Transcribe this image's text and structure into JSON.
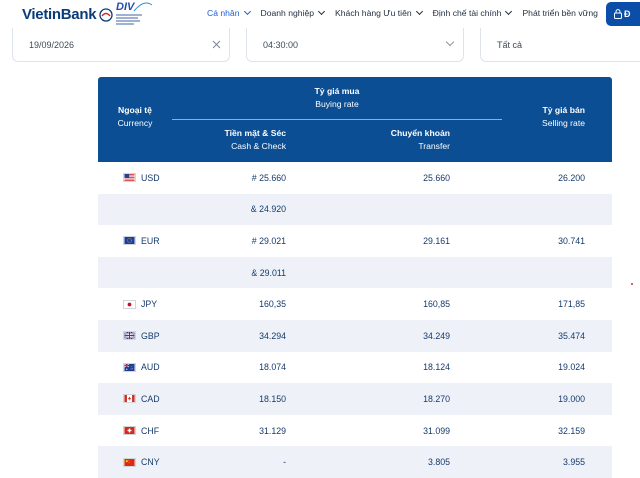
{
  "brand": {
    "name": "VietinBank",
    "badge": "DIV"
  },
  "nav": {
    "items": [
      {
        "label": "Cá nhân",
        "active": true
      },
      {
        "label": "Doanh nghiệp",
        "active": false
      },
      {
        "label": "Khách hàng Ưu tiên",
        "active": false
      },
      {
        "label": "Định chế tài chính",
        "active": false
      },
      {
        "label": "Phát triển bền vững",
        "active": false
      }
    ],
    "login_label": "Đ"
  },
  "filters": {
    "date": "19/09/2026",
    "time": "04:30:00",
    "type": "Tất cả"
  },
  "table": {
    "header": {
      "currency_vi": "Ngoại tệ",
      "currency_en": "Currency",
      "buy_vi": "Tỷ giá mua",
      "buy_en": "Buying rate",
      "cash_vi": "Tiền mặt & Séc",
      "cash_en": "Cash & Check",
      "transfer_vi": "Chuyển khoản",
      "transfer_en": "Transfer",
      "sell_vi": "Tỷ giá bán",
      "sell_en": "Selling rate"
    },
    "rows": [
      {
        "flag": "us-flag",
        "code": "USD",
        "cash": "# 25.660",
        "transfer": "25.660",
        "sell": "26.200"
      },
      {
        "flag": "",
        "code": "",
        "cash": "& 24.920",
        "transfer": "",
        "sell": ""
      },
      {
        "flag": "eu-flag",
        "code": "EUR",
        "cash": "# 29.021",
        "transfer": "29.161",
        "sell": "30.741"
      },
      {
        "flag": "",
        "code": "",
        "cash": "& 29.011",
        "transfer": "",
        "sell": ""
      },
      {
        "flag": "jp-flag",
        "code": "JPY",
        "cash": "160,35",
        "transfer": "160,85",
        "sell": "171,85"
      },
      {
        "flag": "gb-flag",
        "code": "GBP",
        "cash": "34.294",
        "transfer": "34.249",
        "sell": "35.474"
      },
      {
        "flag": "au-flag",
        "code": "AUD",
        "cash": "18.074",
        "transfer": "18.124",
        "sell": "19.024"
      },
      {
        "flag": "ca-flag",
        "code": "CAD",
        "cash": "18.150",
        "transfer": "18.270",
        "sell": "19.000"
      },
      {
        "flag": "ch-flag",
        "code": "CHF",
        "cash": "31.129",
        "transfer": "31.099",
        "sell": "32.159"
      },
      {
        "flag": "cn-flag",
        "code": "CNY",
        "cash": "-",
        "transfer": "3.805",
        "sell": "3.955"
      }
    ]
  },
  "colors": {
    "header_bg": "#0b4e93",
    "row_alt": "#eef2f8",
    "text": "#143a6b",
    "nav_active": "#1c5fd0"
  }
}
